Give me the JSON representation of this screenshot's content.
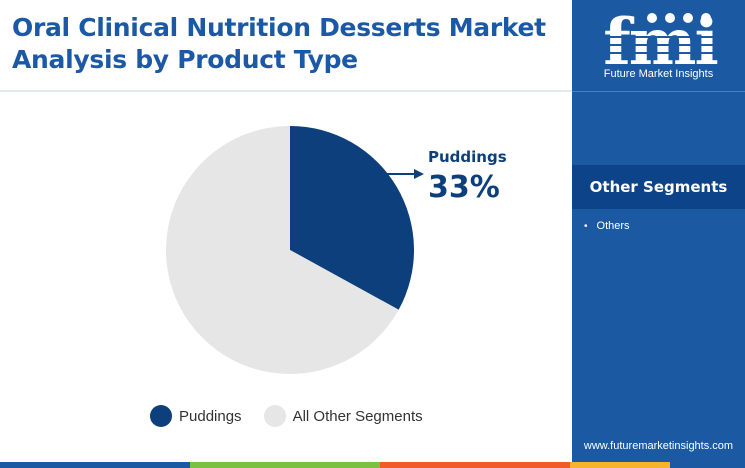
{
  "header": {
    "title_line1": "Oral Clinical Nutrition Desserts Market",
    "title_line2": "Analysis by Product Type"
  },
  "sidebar": {
    "logo_text": "Future Market Insights",
    "logo_letters": "fmi",
    "heading": "Other Segments",
    "items": [
      "Others"
    ],
    "website": "www.futuremarketinsights.com"
  },
  "callout": {
    "label": "Puddings",
    "value_label": "33%"
  },
  "colors": {
    "title": "#1b58a6",
    "sidebar": "#1b5aa3",
    "puddings": "#0d3f7d",
    "other": "#e6e6e6",
    "bottom_bar": [
      "#1b5aa3",
      "#7ac142",
      "#f15a29",
      "#f7b32b",
      "#1b5aa3"
    ]
  },
  "chart_data": {
    "type": "pie",
    "series": [
      {
        "name": "Puddings",
        "value": 33,
        "color": "#0d3f7d"
      },
      {
        "name": "All Other Segments",
        "value": 67,
        "color": "#e6e6e6"
      }
    ],
    "legend": [
      "Puddings",
      "All Other Segments"
    ],
    "legend_position": "bottom",
    "start_angle": "12 o'clock, clockwise"
  }
}
